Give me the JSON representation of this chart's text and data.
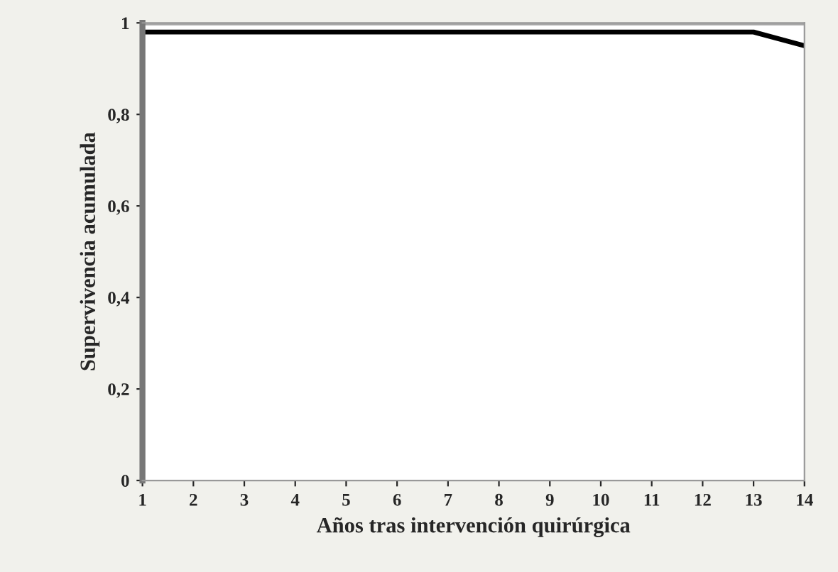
{
  "chart_data": {
    "type": "line",
    "xlabel": "Años tras intervención quirúrgica",
    "ylabel": "Supervivencia acumulada",
    "x": [
      1,
      2,
      3,
      4,
      5,
      6,
      7,
      8,
      9,
      10,
      11,
      12,
      13,
      14
    ],
    "series": [
      {
        "color": "#a6a6a6",
        "values": [
          1,
          1,
          1,
          1,
          1,
          1,
          1,
          1,
          1,
          1,
          1,
          1,
          1,
          1
        ]
      },
      {
        "color": "#000000",
        "values": [
          0.98,
          0.98,
          0.98,
          0.98,
          0.98,
          0.98,
          0.98,
          0.98,
          0.98,
          0.98,
          0.98,
          0.98,
          0.98,
          0.95
        ]
      }
    ],
    "xlim": [
      1,
      14
    ],
    "xticks": [
      1,
      2,
      3,
      4,
      5,
      6,
      7,
      8,
      9,
      10,
      11,
      12,
      13,
      14
    ],
    "ylim": [
      0,
      1
    ],
    "yticks": [
      0,
      {
        "value": 0.2,
        "label": "0,2"
      },
      {
        "value": 0.4,
        "label": "0,4"
      },
      {
        "value": 0.6,
        "label": "0,6"
      },
      {
        "value": 0.8,
        "label": "0,8"
      },
      1
    ],
    "grid": false,
    "legend": false,
    "marker": "none",
    "line_style": "solid"
  }
}
